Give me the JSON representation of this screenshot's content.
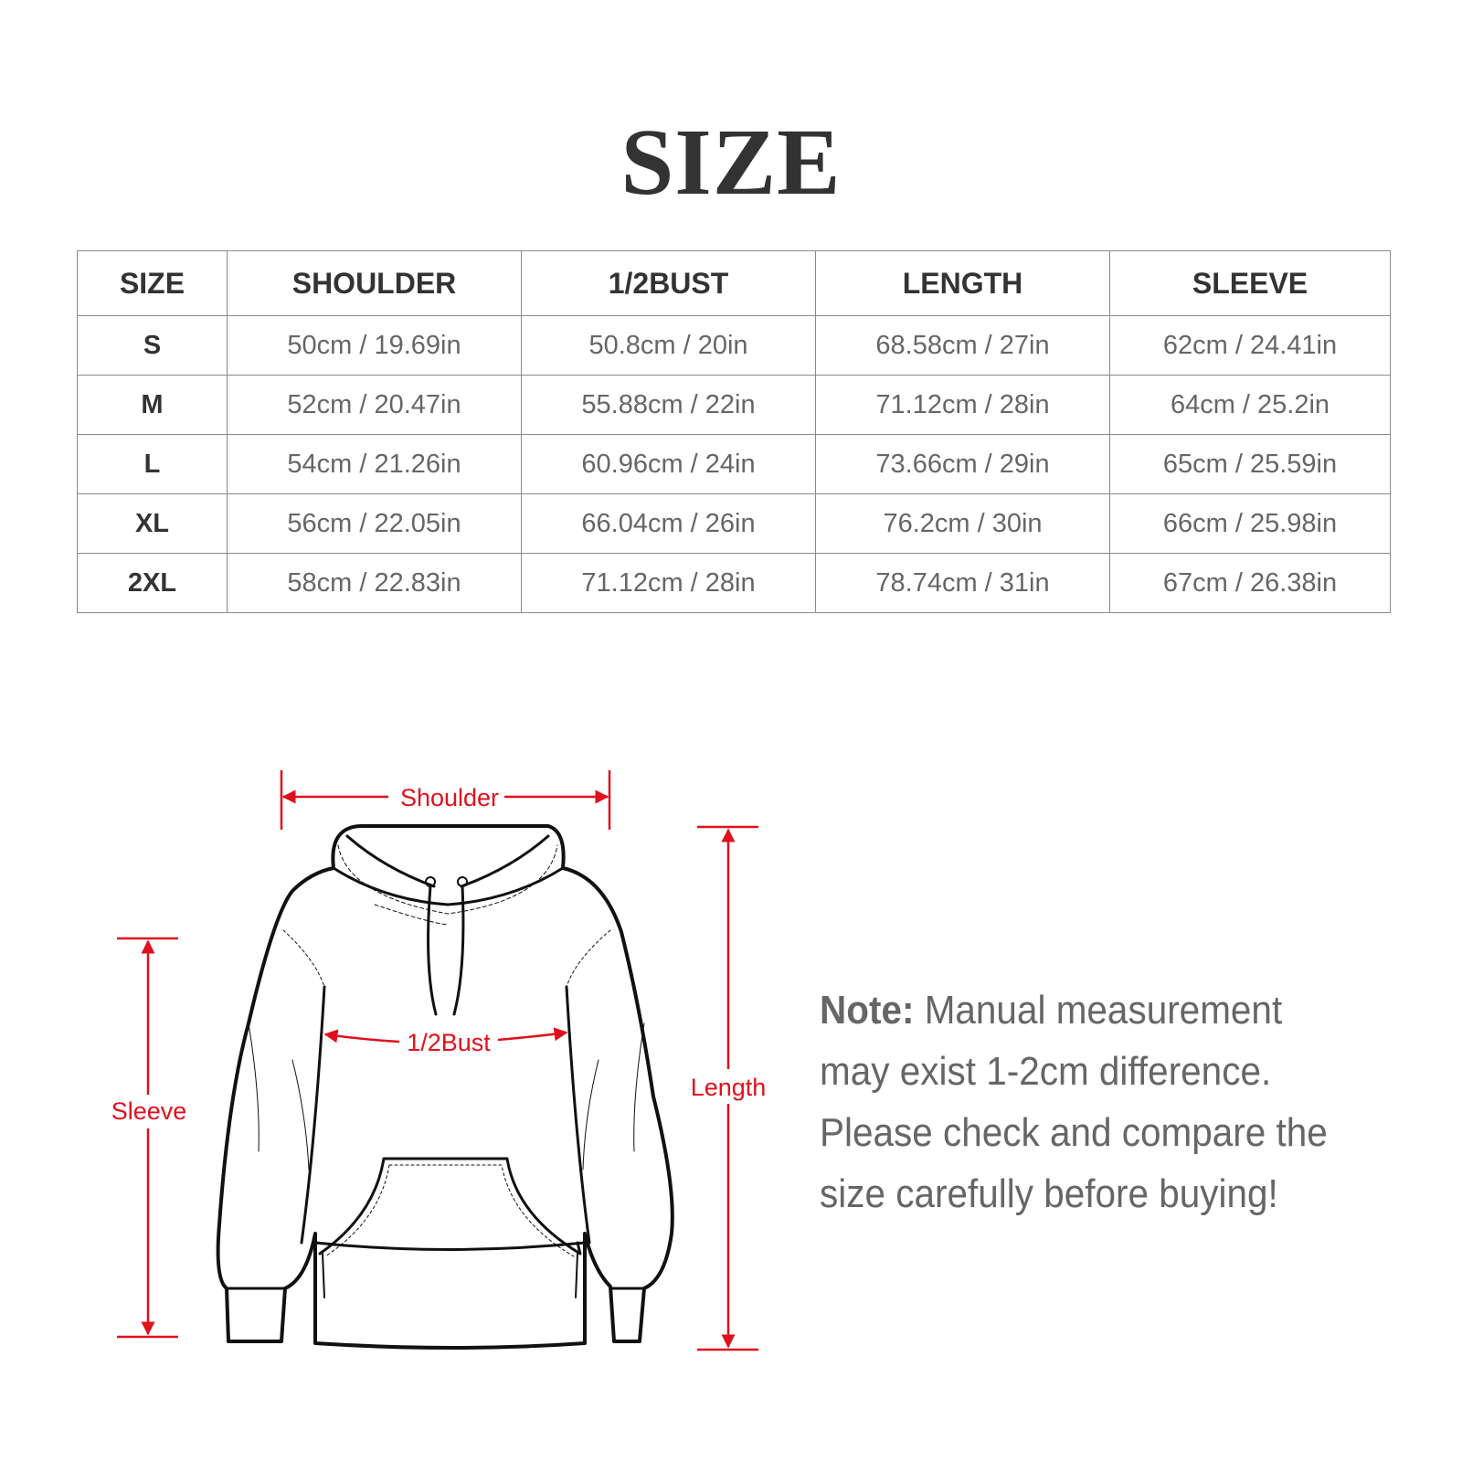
{
  "title": "SIZE",
  "table": {
    "headers": [
      "SIZE",
      "SHOULDER",
      "1/2BUST",
      "LENGTH",
      "SLEEVE"
    ],
    "rows": [
      [
        "S",
        "50cm / 19.69in",
        "50.8cm / 20in",
        "68.58cm / 27in",
        "62cm / 24.41in"
      ],
      [
        "M",
        "52cm / 20.47in",
        "55.88cm / 22in",
        "71.12cm / 28in",
        "64cm / 25.2in"
      ],
      [
        "L",
        "54cm / 21.26in",
        "60.96cm / 24in",
        "73.66cm / 29in",
        "65cm / 25.59in"
      ],
      [
        "XL",
        "56cm / 22.05in",
        "66.04cm / 26in",
        "76.2cm / 30in",
        "66cm / 25.98in"
      ],
      [
        "2XL",
        "58cm / 22.83in",
        "71.12cm / 28in",
        "78.74cm / 31in",
        "67cm / 26.38in"
      ]
    ]
  },
  "diagram": {
    "labels": {
      "shoulder": "Shoulder",
      "bust": "1/2Bust",
      "sleeve": "Sleeve",
      "length": "Length"
    },
    "accent_color": "#e0101c"
  },
  "note": {
    "label": "Note:",
    "text": " Manual measurement may exist 1-2cm difference. Please check and compare the size carefully before buying!"
  }
}
